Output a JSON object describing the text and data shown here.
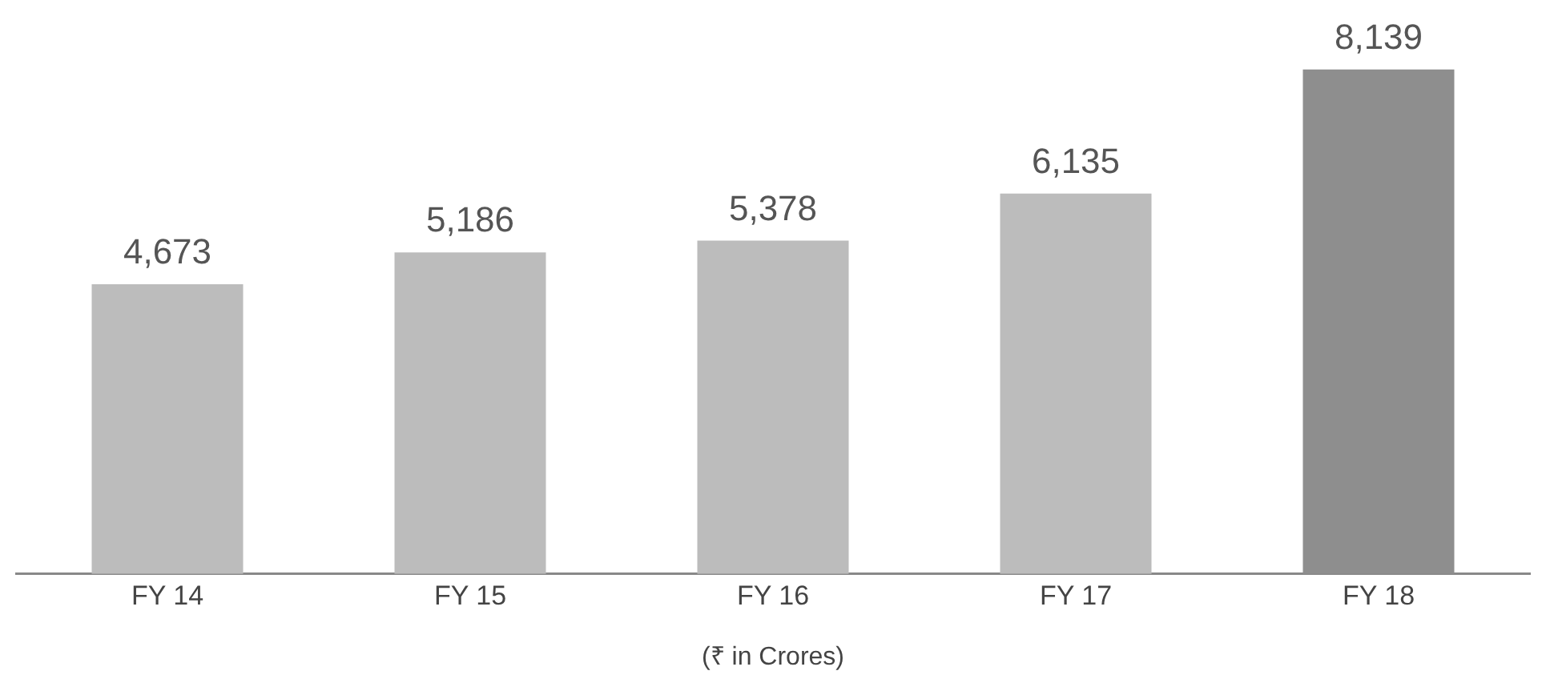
{
  "chart_data": {
    "type": "bar",
    "xlabel": "(₹ in Crores)",
    "categories": [
      "FY 14",
      "FY 15",
      "FY 16",
      "FY 17",
      "FY 18"
    ],
    "values": [
      4673,
      5186,
      5378,
      6135,
      8139
    ],
    "colors": [
      "#bcbcbc",
      "#bcbcbc",
      "#bcbcbc",
      "#bcbcbc",
      "#8e8e8e"
    ],
    "value_labels": [
      "4,673",
      "5,186",
      "5,378",
      "6,135",
      "8,139"
    ]
  }
}
